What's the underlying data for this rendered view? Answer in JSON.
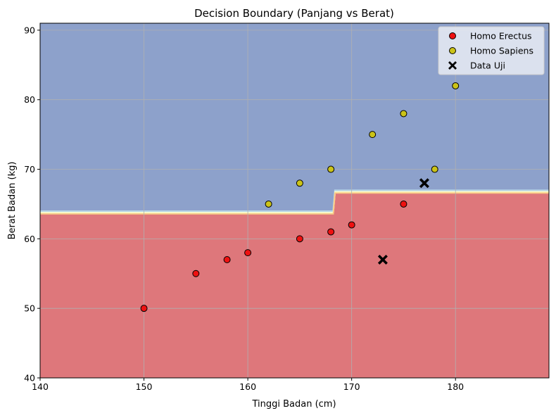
{
  "colors": {
    "region_sapiens": "#8da1cb",
    "region_erectus": "#de777b",
    "transition_1": "#b7d6e8",
    "transition_2": "#fffdc6",
    "transition_3": "#fbc782",
    "erectus_point": "#ee1111",
    "sapiens_point": "#cbc318",
    "test_point": "#000000",
    "grid": "#b0b0b0",
    "legend_bg": "#e9ecf5"
  },
  "chart_data": {
    "type": "scatter",
    "title": "Decision Boundary (Panjang vs Berat)",
    "xlabel": "Tinggi Badan (cm)",
    "ylabel": "Berat Badan (kg)",
    "xlim": [
      140,
      189
    ],
    "ylim": [
      40,
      91
    ],
    "xticks": [
      140,
      150,
      160,
      170,
      180
    ],
    "yticks": [
      40,
      50,
      60,
      70,
      80,
      90
    ],
    "grid": true,
    "legend_position": "top-right",
    "decision_boundary": {
      "lower_region_class": "Homo Erectus",
      "upper_region_class": "Homo Sapiens",
      "boundary_steps": [
        {
          "x_from": 140,
          "x_to": 168.3,
          "y": 63.5
        },
        {
          "x_from": 168.3,
          "x_to": 189,
          "y": 66.5
        }
      ]
    },
    "series": [
      {
        "name": "Homo Erectus",
        "marker": "circle",
        "color": "#ee1111",
        "points": [
          {
            "x": 150,
            "y": 50
          },
          {
            "x": 155,
            "y": 55
          },
          {
            "x": 158,
            "y": 57
          },
          {
            "x": 160,
            "y": 58
          },
          {
            "x": 165,
            "y": 60
          },
          {
            "x": 168,
            "y": 61
          },
          {
            "x": 170,
            "y": 62
          },
          {
            "x": 175,
            "y": 65
          }
        ]
      },
      {
        "name": "Homo Sapiens",
        "marker": "circle",
        "color": "#cbc318",
        "points": [
          {
            "x": 162,
            "y": 65
          },
          {
            "x": 165,
            "y": 68
          },
          {
            "x": 168,
            "y": 70
          },
          {
            "x": 172,
            "y": 75
          },
          {
            "x": 175,
            "y": 78
          },
          {
            "x": 178,
            "y": 70
          },
          {
            "x": 180,
            "y": 82
          }
        ]
      },
      {
        "name": "Data Uji",
        "marker": "x",
        "color": "#000000",
        "points": [
          {
            "x": 173,
            "y": 57
          },
          {
            "x": 177,
            "y": 68
          }
        ]
      }
    ]
  }
}
